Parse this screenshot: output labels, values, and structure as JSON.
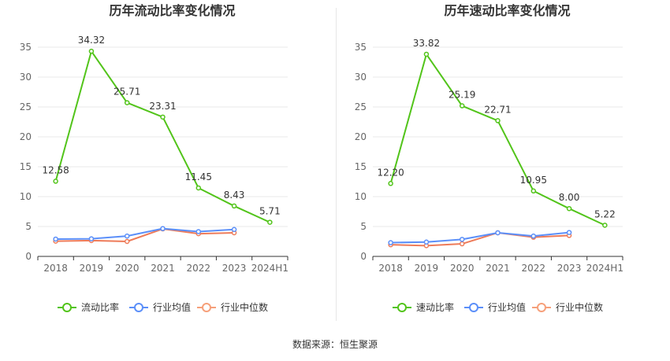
{
  "colors": {
    "primary": "#52c41a",
    "average": "#5b8ff9",
    "median": "#f6a07a",
    "median_line": "#ee7b59",
    "grid": "#e8e8e8",
    "axis": "#333333",
    "tick_text": "#666666"
  },
  "chart_data": [
    {
      "type": "line",
      "title": "历年流动比率变化情况",
      "categories": [
        "2018",
        "2019",
        "2020",
        "2021",
        "2022",
        "2023",
        "2024H1"
      ],
      "ylim": [
        0,
        35
      ],
      "yticks": [
        0,
        5,
        10,
        15,
        20,
        25,
        30,
        35
      ],
      "series": [
        {
          "name": "流动比率",
          "values": [
            12.58,
            34.32,
            25.71,
            23.31,
            11.45,
            8.43,
            5.71
          ],
          "labels": [
            "12.58",
            "34.32",
            "25.71",
            "23.31",
            "11.45",
            "8.43",
            "5.71"
          ]
        },
        {
          "name": "行业均值",
          "values": [
            2.9,
            2.95,
            3.4,
            4.65,
            4.15,
            4.5,
            null
          ]
        },
        {
          "name": "行业中位数",
          "values": [
            2.55,
            2.65,
            2.5,
            4.6,
            3.8,
            3.95,
            null
          ]
        }
      ]
    },
    {
      "type": "line",
      "title": "历年速动比率变化情况",
      "categories": [
        "2018",
        "2019",
        "2020",
        "2021",
        "2022",
        "2023",
        "2024H1"
      ],
      "ylim": [
        0,
        35
      ],
      "yticks": [
        0,
        5,
        10,
        15,
        20,
        25,
        30,
        35
      ],
      "series": [
        {
          "name": "速动比率",
          "values": [
            12.2,
            33.82,
            25.19,
            22.71,
            10.95,
            8.0,
            5.22
          ],
          "labels": [
            "12.20",
            "33.82",
            "25.19",
            "22.71",
            "10.95",
            "8.00",
            "5.22"
          ]
        },
        {
          "name": "行业均值",
          "values": [
            2.3,
            2.4,
            2.85,
            3.95,
            3.4,
            4.0,
            null
          ]
        },
        {
          "name": "行业中位数",
          "values": [
            1.95,
            1.8,
            2.1,
            3.95,
            3.2,
            3.5,
            null
          ]
        }
      ]
    }
  ],
  "source": "数据来源：恒生聚源"
}
